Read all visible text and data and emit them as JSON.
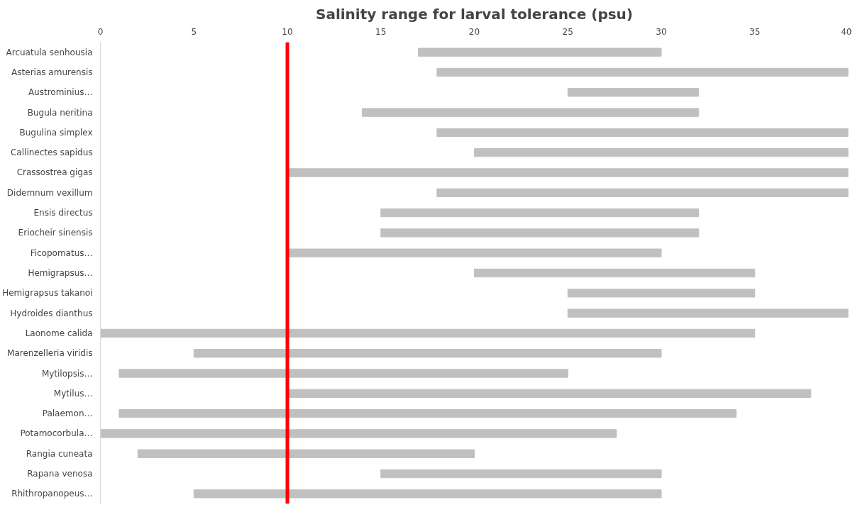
{
  "chart_data": {
    "type": "bar",
    "orientation": "horizontal",
    "title": "Salinity range for larval tolerance (psu)",
    "categories": [
      "Arcuatula senhousia",
      "Asterias amurensis",
      "Austrominius…",
      "Bugula neritina",
      "Bugulina simplex",
      "Callinectes sapidus",
      "Crassostrea gigas",
      "Didemnum vexillum",
      "Ensis directus",
      "Eriocheir sinensis",
      "Ficopomatus…",
      "Hemigrapsus…",
      "Hemigrapsus takanoi",
      "Hydroides dianthus",
      "Laonome calida",
      "Marenzelleria viridis",
      "Mytilopsis…",
      "Mytilus…",
      "Palaemon…",
      "Potamocorbula…",
      "Rangia cuneata",
      "Rapana venosa",
      "Rhithropanopeus…"
    ],
    "base": [
      17,
      18,
      25,
      14,
      18,
      20,
      10,
      18,
      15,
      15,
      10,
      20,
      25,
      25,
      0,
      5,
      1,
      10,
      1,
      0,
      2,
      15,
      5
    ],
    "values": [
      13,
      22,
      7,
      18,
      22,
      20,
      30,
      22,
      17,
      17,
      20,
      15,
      10,
      15,
      35,
      25,
      24,
      28,
      33,
      27.6,
      18,
      15,
      25
    ],
    "color": "#c0c0c0",
    "xlim": [
      0,
      40
    ],
    "xticks": [
      0,
      5,
      10,
      15,
      20,
      25,
      30,
      35,
      40
    ],
    "grid": false,
    "ref_lines": [
      {
        "axis": "x",
        "value": 10,
        "color": "#ff0000"
      }
    ]
  }
}
